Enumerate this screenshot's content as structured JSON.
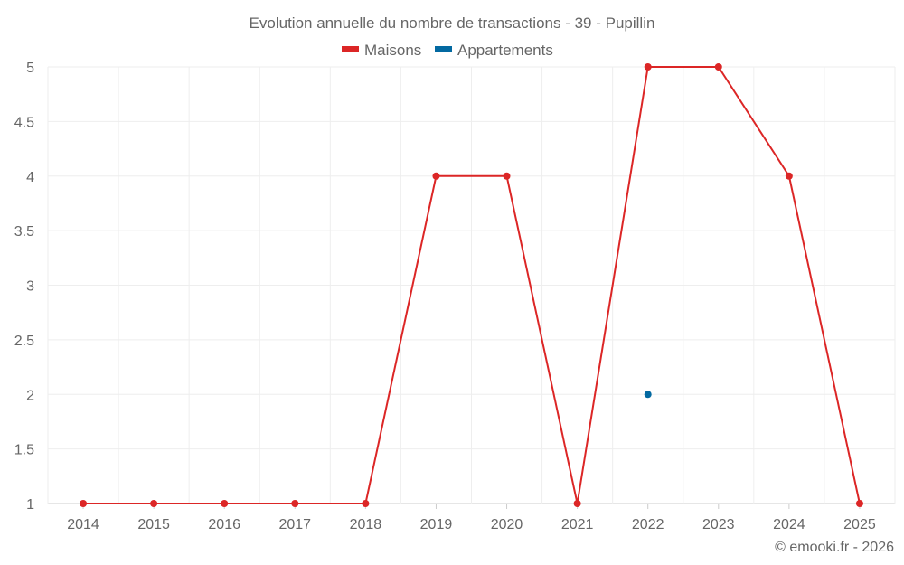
{
  "chart_data": {
    "type": "line",
    "title": "Evolution annuelle du nombre de transactions - 39 - Pupillin",
    "categories": [
      "2014",
      "2015",
      "2016",
      "2017",
      "2018",
      "2019",
      "2020",
      "2021",
      "2022",
      "2023",
      "2024",
      "2025"
    ],
    "series": [
      {
        "name": "Maisons",
        "color": "#dc2626",
        "values": [
          1,
          1,
          1,
          1,
          1,
          4,
          4,
          1,
          5,
          5,
          4,
          1
        ]
      },
      {
        "name": "Appartements",
        "color": "#0369a1",
        "values": [
          null,
          null,
          null,
          null,
          null,
          null,
          null,
          null,
          2,
          null,
          null,
          null
        ]
      }
    ],
    "ylim": [
      1,
      5
    ],
    "yticks": [
      "1",
      "1.5",
      "2",
      "2.5",
      "3",
      "3.5",
      "4",
      "4.5",
      "5"
    ],
    "grid": true,
    "legend": "top-center",
    "xlabel": "",
    "ylabel": ""
  },
  "credit": "© emooki.fr - 2026"
}
